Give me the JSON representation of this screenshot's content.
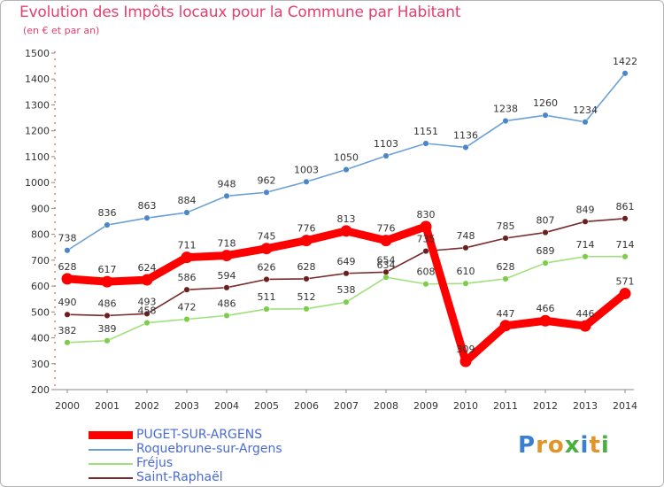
{
  "title": "Evolution des Impôts locaux pour la Commune par Habitant",
  "subtitle": "(en € et par an)",
  "logo": "Proxiti",
  "chart_data": {
    "type": "line",
    "x": [
      "2000",
      "2001",
      "2002",
      "2003",
      "2004",
      "2005",
      "2006",
      "2007",
      "2008",
      "2009",
      "2010",
      "2011",
      "2012",
      "2013",
      "2014"
    ],
    "ylim": [
      200,
      1500
    ],
    "yticks": [
      200,
      300,
      400,
      500,
      600,
      700,
      800,
      900,
      1000,
      1100,
      1200,
      1300,
      1400,
      1500
    ],
    "grid": false,
    "legend_position": "bottom-left",
    "series": [
      {
        "name": "PUGET-SUR-ARGENS",
        "color": "#ff0000",
        "marker_color": "#ff0000",
        "emphasis": true,
        "values": [
          628,
          617,
          624,
          711,
          718,
          745,
          776,
          813,
          776,
          830,
          309,
          447,
          466,
          446,
          571
        ]
      },
      {
        "name": "Roquebrune-sur-Argens",
        "color": "#6aa0d8",
        "marker_color": "#4a86c8",
        "emphasis": false,
        "values": [
          738,
          836,
          863,
          884,
          948,
          962,
          1003,
          1050,
          1103,
          1151,
          1136,
          1238,
          1260,
          1234,
          1422
        ]
      },
      {
        "name": "Fréjus",
        "color": "#9fe07a",
        "marker_color": "#7ccd4a",
        "emphasis": false,
        "values": [
          382,
          389,
          458,
          472,
          486,
          511,
          512,
          538,
          634,
          608,
          610,
          628,
          689,
          714,
          714
        ]
      },
      {
        "name": "Saint-Raphaël",
        "color": "#7a2a2a",
        "marker_color": "#6a1e1e",
        "emphasis": false,
        "values": [
          490,
          486,
          493,
          586,
          594,
          626,
          628,
          649,
          654,
          735,
          748,
          785,
          807,
          849,
          861
        ]
      }
    ]
  }
}
